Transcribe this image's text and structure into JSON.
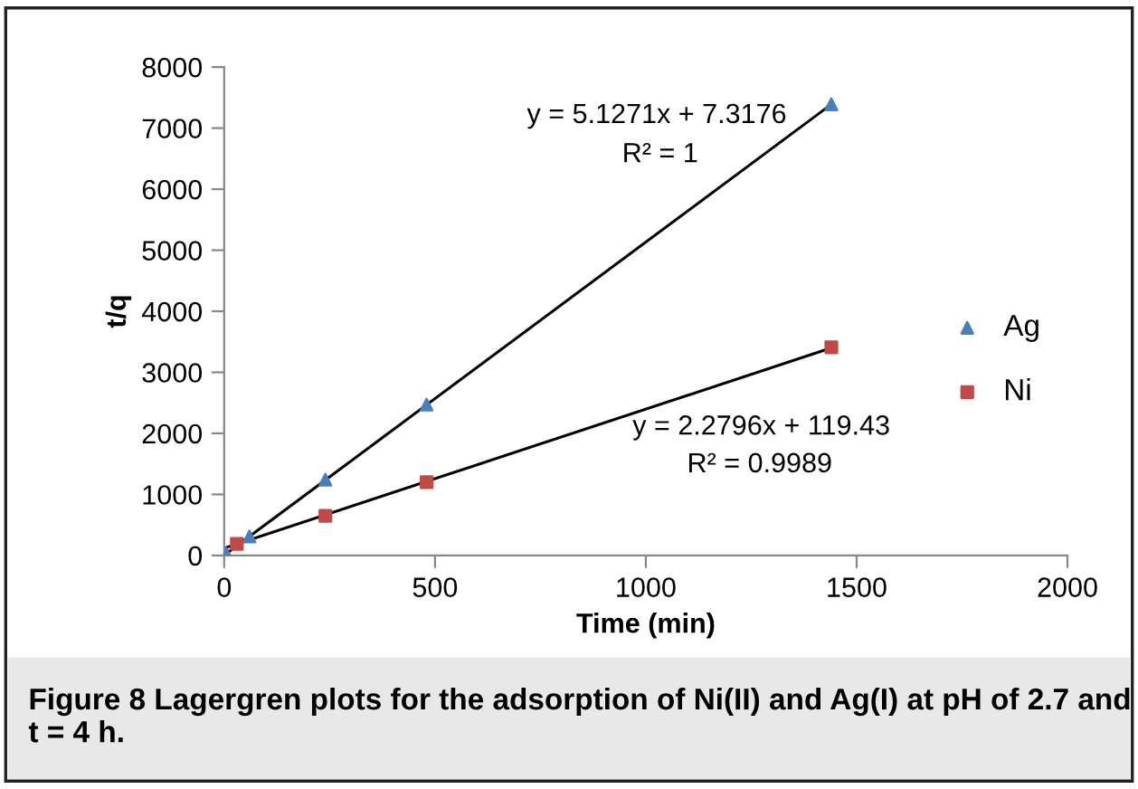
{
  "chart_data": {
    "type": "scatter",
    "xlabel": "Time (min)",
    "ylabel": "t/q",
    "xlim": [
      0,
      2000
    ],
    "ylim": [
      0,
      8000
    ],
    "xticks": [
      0,
      500,
      1000,
      1500,
      2000
    ],
    "yticks": [
      0,
      1000,
      2000,
      3000,
      4000,
      5000,
      6000,
      7000,
      8000
    ],
    "grid": false,
    "legend": "right",
    "series": [
      {
        "name": "Ag",
        "marker": "triangle",
        "color": "#4a7ebb",
        "x": [
          5,
          60,
          240,
          480,
          1440
        ],
        "values": [
          30,
          310,
          1240,
          2470,
          7390
        ]
      },
      {
        "name": "Ni",
        "marker": "square",
        "color": "#be4b48",
        "x": [
          30,
          240,
          480,
          1440
        ],
        "values": [
          190,
          650,
          1200,
          3410
        ]
      },
      {
        "type": "line",
        "marker": "none",
        "color": "#000000",
        "x": [
          5,
          1440
        ],
        "values": [
          30,
          7390
        ]
      },
      {
        "type": "line",
        "marker": "none",
        "color": "#000000",
        "x": [
          5,
          1440
        ],
        "values": [
          130,
          3400
        ]
      }
    ],
    "annotations": [
      "y = 5.1271x + 7.3176",
      "R² = 1",
      "y = 2.2796x + 119.43",
      "R² = 0.9989",
      "Figure 8 Lagergren plots for the adsorption of Ni(II) and Ag(I) at pH of 2.7 and t = 4 h."
    ]
  }
}
